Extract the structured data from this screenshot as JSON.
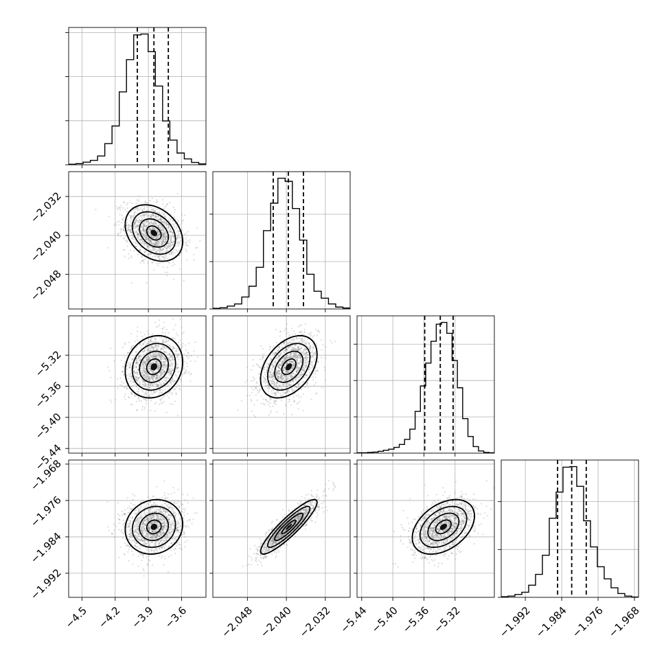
{
  "chart_data": {
    "type": "corner",
    "grid": true,
    "parameters": [
      {
        "ticks": [
          -4.5,
          -4.2,
          -3.9,
          -3.6
        ],
        "tick_labels": [
          "−4.5",
          "−4.2",
          "−3.9",
          "−3.6"
        ],
        "range": [
          -4.62,
          -3.38
        ],
        "mean": -3.85,
        "sd": 0.13,
        "quantiles": [
          -4.0,
          -3.85,
          -3.72
        ],
        "hist_counts": [
          2,
          4,
          9,
          15,
          30,
          72,
          132,
          248,
          358,
          442,
          445,
          385,
          268,
          149,
          84,
          40,
          20,
          8,
          3
        ]
      },
      {
        "ticks": [
          -2.048,
          -2.04,
          -2.032
        ],
        "tick_labels": [
          "−2.048",
          "−2.040",
          "−2.032"
        ],
        "range": [
          -2.0551,
          -2.0269
        ],
        "mean": -2.0395,
        "sd": 0.0029,
        "quantiles": [
          -2.0427,
          -2.0396,
          -2.0365
        ],
        "hist_counts": [
          2,
          4,
          9,
          16,
          38,
          72,
          132,
          248,
          335,
          414,
          404,
          318,
          218,
          110,
          56,
          34,
          16,
          6,
          3
        ]
      },
      {
        "ticks": [
          -5.44,
          -5.4,
          -5.36,
          -5.32
        ],
        "tick_labels": [
          "−5.44",
          "−5.40",
          "−5.36",
          "−5.32"
        ],
        "range": [
          -5.446,
          -5.2695
        ],
        "mean": -5.335,
        "sd": 0.02,
        "quantiles": [
          -5.359,
          -5.339,
          -5.3225
        ],
        "hist_counts": [
          1,
          1,
          2,
          3,
          5,
          8,
          11,
          16,
          24,
          38,
          66,
          115,
          185,
          248,
          308,
          355,
          360,
          330,
          255,
          180,
          95,
          46,
          18,
          6,
          2,
          1
        ]
      },
      {
        "ticks": [
          -1.992,
          -1.984,
          -1.976,
          -1.968
        ],
        "tick_labels": [
          "−1.992",
          "−1.984",
          "−1.976",
          "−1.968"
        ],
        "range": [
          -1.9973,
          -1.9671
        ],
        "mean": -1.9818,
        "sd": 0.003,
        "quantiles": [
          -1.9849,
          -1.9818,
          -1.9786
        ],
        "hist_counts": [
          2,
          4,
          9,
          16,
          38,
          72,
          132,
          248,
          330,
          408,
          410,
          348,
          240,
          158,
          96,
          58,
          30,
          12,
          4,
          1
        ]
      }
    ],
    "correlations": [
      [
        1.0,
        -0.3,
        0.15,
        0.1
      ],
      [
        -0.3,
        1.0,
        0.4,
        0.9
      ],
      [
        0.15,
        0.4,
        1.0,
        0.4
      ],
      [
        0.1,
        0.9,
        0.4,
        1.0
      ]
    ],
    "contour_levels_sigma": [
      0.5,
      1.0,
      1.5,
      2.0
    ]
  }
}
